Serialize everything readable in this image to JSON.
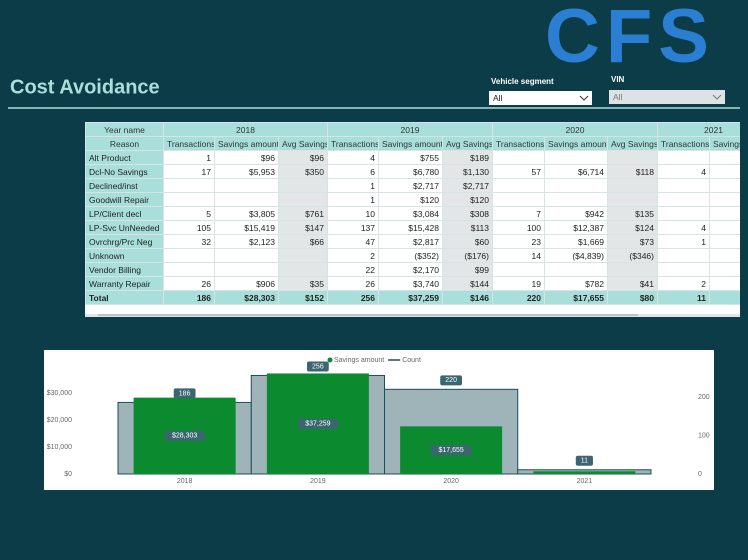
{
  "header": {
    "logo": "CFS",
    "title": "Cost Avoidance"
  },
  "filters": [
    {
      "label": "Vehicle segment",
      "value": "All"
    },
    {
      "label": "VIN",
      "value": "All"
    }
  ],
  "table": {
    "year_header": [
      "Year name",
      "2018",
      "2019",
      "2020",
      "2021"
    ],
    "columns": [
      "Reason",
      "Transactions",
      "Savings amount",
      "Avg Savings",
      "Transactions",
      "Savings amount",
      "Avg Savings",
      "Transactions",
      "Savings amount",
      "Avg Savings",
      "Transactions",
      "Savings amount"
    ],
    "rows": [
      [
        "Alt Product",
        "1",
        "$96",
        "$96",
        "4",
        "$755",
        "$189",
        null,
        null,
        null,
        null,
        null
      ],
      [
        "Dcl-No Savings",
        "17",
        "$5,953",
        "$350",
        "6",
        "$6,780",
        "$1,130",
        "57",
        "$6,714",
        "$118",
        "4",
        null
      ],
      [
        "Declined/inst",
        null,
        null,
        null,
        "1",
        "$2,717",
        "$2,717",
        null,
        null,
        null,
        null,
        null
      ],
      [
        "Goodwill Repair",
        null,
        null,
        null,
        "1",
        "$120",
        "$120",
        null,
        null,
        null,
        null,
        null
      ],
      [
        "LP/Client decl",
        "5",
        "$3,805",
        "$761",
        "10",
        "$3,084",
        "$308",
        "7",
        "$942",
        "$135",
        null,
        null
      ],
      [
        "LP-Svc UnNeeded",
        "105",
        "$15,419",
        "$147",
        "137",
        "$15,428",
        "$113",
        "100",
        "$12,387",
        "$124",
        "4",
        null
      ],
      [
        "Ovrchrg/Prc Neg",
        "32",
        "$2,123",
        "$66",
        "47",
        "$2,817",
        "$60",
        "23",
        "$1,669",
        "$73",
        "1",
        null
      ],
      [
        "Unknown",
        null,
        null,
        null,
        "2",
        "($352)",
        "($176)",
        "14",
        "($4,839)",
        "($346)",
        null,
        null
      ],
      [
        "Vendor Billing",
        null,
        null,
        null,
        "22",
        "$2,170",
        "$99",
        null,
        null,
        null,
        null,
        null
      ],
      [
        "Warranty Repair",
        "26",
        "$906",
        "$35",
        "26",
        "$3,740",
        "$144",
        "19",
        "$782",
        "$41",
        "2",
        null
      ],
      [
        "Total",
        "186",
        "$28,303",
        "$152",
        "256",
        "$37,259",
        "$146",
        "220",
        "$17,655",
        "$80",
        "11",
        null
      ]
    ]
  },
  "chart_data": {
    "type": "combo",
    "categories": [
      "2018",
      "2019",
      "2020",
      "2021"
    ],
    "series": [
      {
        "name": "Savings amount",
        "type": "bar",
        "color": "#0b8a2f",
        "values": [
          28303,
          37259,
          17655,
          1000
        ],
        "value_labels": [
          "$28,303",
          "$37,259",
          "$17,655",
          null
        ]
      },
      {
        "name": "Count",
        "type": "step",
        "axis": "y2",
        "color": "#9fb4b8",
        "values": [
          186,
          256,
          220,
          11
        ]
      }
    ],
    "ylim": [
      0,
      37800
    ],
    "yticks": [
      {
        "value": 0,
        "label": "$0"
      },
      {
        "value": 10000,
        "label": "$10,000"
      },
      {
        "value": 20000,
        "label": "$20,000"
      },
      {
        "value": 30000,
        "label": "$30,000"
      }
    ],
    "y2lim": [
      0,
      265
    ],
    "y2ticks": [
      0,
      100,
      200
    ],
    "legend": "top"
  }
}
